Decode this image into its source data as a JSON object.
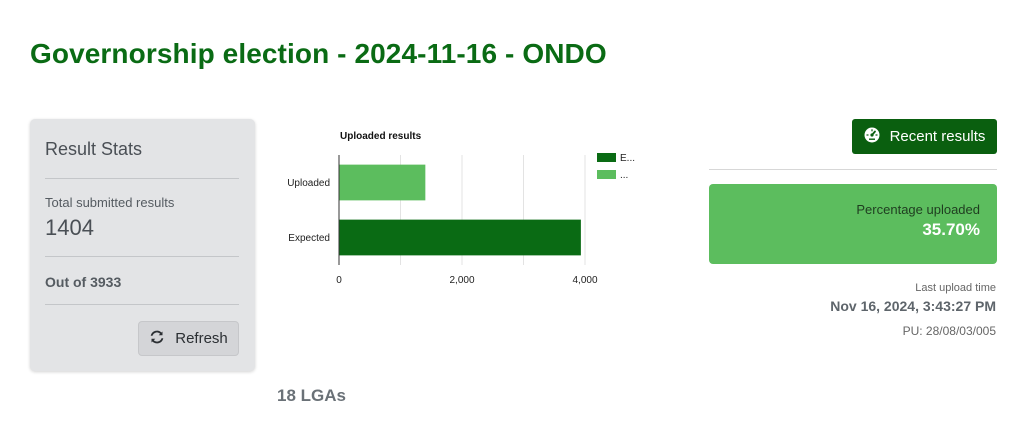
{
  "page": {
    "title": "Governorship election - 2024-11-16 - ONDO"
  },
  "stats": {
    "title": "Result Stats",
    "total_label": "Total submitted results",
    "total_value": "1404",
    "out_of": "Out of 3933",
    "refresh_label": "Refresh",
    "lgas": "18 LGAs"
  },
  "colors": {
    "brand": "#0a6b14",
    "uploaded": "#5cbd5e",
    "expected": "#0a6b14",
    "button_dark": "#0a5f0f"
  },
  "chart_data": {
    "type": "bar",
    "orientation": "horizontal",
    "title": "Uploaded results",
    "categories": [
      "Uploaded",
      "Expected"
    ],
    "values": [
      1404,
      3933
    ],
    "bar_colors": [
      "#5cbd5e",
      "#0a6b14"
    ],
    "xlim": [
      0,
      4000
    ],
    "ticks": [
      0,
      2000,
      4000
    ],
    "tick_labels": [
      "0",
      "2,000",
      "4,000"
    ],
    "grid": true,
    "legend": [
      {
        "label": "E...",
        "color": "#0a6b14"
      },
      {
        "label": "...",
        "color": "#5cbd5e"
      }
    ]
  },
  "right": {
    "recent_label": "Recent results",
    "pct_label": "Percentage uploaded",
    "pct_value": "35.70%",
    "last_label": "Last upload time",
    "last_time": "Nov 16, 2024, 3:43:27 PM",
    "pu": "PU: 28/08/03/005"
  }
}
